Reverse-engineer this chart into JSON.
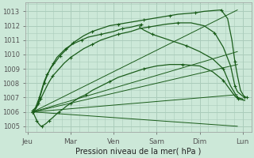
{
  "title": "Pression niveau de la mer( hPa )",
  "bg_color": "#cce8d8",
  "grid_color": "#aaccbb",
  "line_color": "#1a5c1a",
  "xtick_labels": [
    "Jeu",
    "Mar",
    "Ven",
    "Sam",
    "Dim",
    "Lun"
  ],
  "xtick_positions": [
    0,
    1,
    2,
    3,
    4,
    5
  ],
  "xlim": [
    -0.05,
    5.2
  ],
  "ylim": [
    1004.6,
    1013.6
  ],
  "yticks": [
    1005,
    1006,
    1007,
    1008,
    1009,
    1010,
    1011,
    1012,
    1013
  ],
  "fan_lines": [
    {
      "x": [
        0.12,
        4.88
      ],
      "y": [
        1006.0,
        1005.0
      ]
    },
    {
      "x": [
        0.12,
        4.88
      ],
      "y": [
        1006.0,
        1007.2
      ]
    },
    {
      "x": [
        0.12,
        4.88
      ],
      "y": [
        1006.0,
        1009.3
      ]
    },
    {
      "x": [
        0.12,
        4.88
      ],
      "y": [
        1006.0,
        1010.2
      ]
    },
    {
      "x": [
        0.12,
        4.88
      ],
      "y": [
        1006.0,
        1013.1
      ]
    }
  ],
  "curve1_x": [
    0.12,
    0.18,
    0.22,
    0.27,
    0.32,
    0.38,
    0.45,
    0.55,
    0.65,
    0.75,
    0.85,
    0.95,
    1.05,
    1.15,
    1.3,
    1.5,
    1.7,
    1.9,
    2.1,
    2.3,
    2.5,
    2.7,
    2.9,
    3.1,
    3.3,
    3.5,
    3.7,
    3.9,
    4.1,
    4.3,
    4.5,
    4.65,
    4.75,
    4.82,
    4.88,
    4.95,
    5.05
  ],
  "curve1_y": [
    1006.1,
    1006.3,
    1006.6,
    1007.0,
    1007.5,
    1008.1,
    1008.6,
    1009.1,
    1009.5,
    1009.9,
    1010.2,
    1010.5,
    1010.8,
    1011.0,
    1011.3,
    1011.6,
    1011.8,
    1012.0,
    1012.1,
    1012.2,
    1012.3,
    1012.4,
    1012.5,
    1012.6,
    1012.7,
    1012.8,
    1012.85,
    1012.9,
    1013.0,
    1013.05,
    1013.1,
    1012.5,
    1011.0,
    1009.5,
    1008.5,
    1007.5,
    1007.0
  ],
  "curve2_x": [
    0.12,
    0.18,
    0.24,
    0.3,
    0.38,
    0.48,
    0.58,
    0.7,
    0.85,
    1.0,
    1.15,
    1.3,
    1.5,
    1.7,
    1.9,
    2.1,
    2.4,
    2.6,
    2.8,
    3.0,
    3.2,
    3.5,
    3.8,
    4.1,
    4.35,
    4.55,
    4.72,
    4.82,
    4.88,
    5.0,
    5.1
  ],
  "curve2_y": [
    1006.0,
    1006.2,
    1006.5,
    1006.9,
    1007.4,
    1008.0,
    1008.5,
    1008.9,
    1009.4,
    1009.8,
    1010.1,
    1010.4,
    1010.7,
    1011.0,
    1011.2,
    1011.4,
    1011.6,
    1011.8,
    1011.9,
    1012.0,
    1012.1,
    1012.2,
    1012.2,
    1012.0,
    1011.5,
    1010.5,
    1009.2,
    1007.8,
    1007.4,
    1007.1,
    1007.0
  ],
  "curve3_x": [
    0.12,
    0.16,
    0.2,
    0.24,
    0.28,
    0.33,
    0.38,
    0.45,
    0.52,
    0.6,
    0.68,
    0.78,
    0.88,
    0.98,
    1.1,
    1.25,
    1.4,
    1.55,
    1.7,
    1.85,
    2.0,
    2.2,
    2.4,
    2.6,
    2.65,
    2.6,
    2.7,
    2.9,
    3.1,
    3.4,
    3.7,
    4.0,
    4.3,
    4.55,
    4.72,
    4.82,
    4.88,
    5.0
  ],
  "curve3_y": [
    1006.0,
    1006.1,
    1006.3,
    1006.6,
    1007.0,
    1007.5,
    1008.0,
    1008.5,
    1009.0,
    1009.4,
    1009.8,
    1010.1,
    1010.4,
    1010.6,
    1010.8,
    1011.0,
    1011.2,
    1011.3,
    1011.4,
    1011.5,
    1011.6,
    1011.8,
    1011.9,
    1012.05,
    1012.1,
    1011.9,
    1011.7,
    1011.4,
    1011.2,
    1010.9,
    1010.6,
    1010.2,
    1009.7,
    1009.0,
    1007.8,
    1007.3,
    1007.0,
    1006.9
  ],
  "curve4_x": [
    0.12,
    0.15,
    0.18,
    0.21,
    0.25,
    0.29,
    0.33,
    0.38,
    0.43,
    0.5,
    0.58,
    0.65,
    0.73,
    0.82,
    0.9,
    1.0,
    1.1,
    1.2,
    1.35,
    1.5,
    1.7,
    1.9,
    2.1,
    2.4,
    2.7,
    3.0,
    3.3,
    3.6,
    4.0,
    4.3,
    4.55,
    4.72,
    4.82,
    4.9,
    5.05
  ],
  "curve4_y": [
    1006.0,
    1005.8,
    1005.6,
    1005.4,
    1005.2,
    1005.05,
    1005.0,
    1005.1,
    1005.2,
    1005.4,
    1005.6,
    1005.8,
    1006.0,
    1006.2,
    1006.4,
    1006.6,
    1006.8,
    1007.0,
    1007.2,
    1007.5,
    1007.8,
    1008.1,
    1008.4,
    1008.7,
    1009.0,
    1009.2,
    1009.3,
    1009.3,
    1009.2,
    1008.8,
    1008.2,
    1007.5,
    1007.1,
    1006.9,
    1006.8
  ]
}
